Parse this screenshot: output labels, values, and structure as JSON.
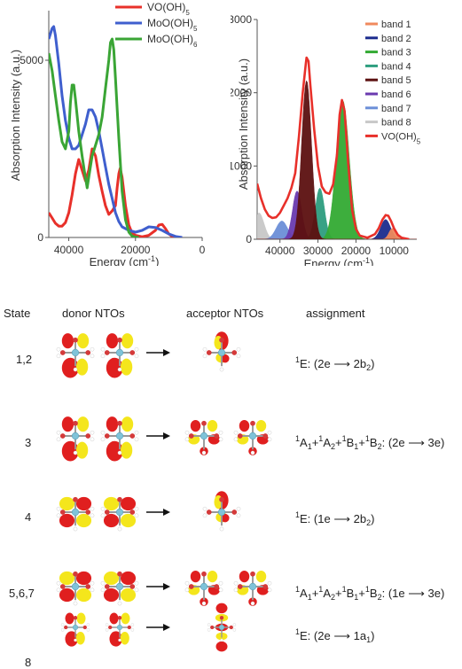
{
  "chart_data": [
    {
      "type": "line",
      "xlabel": "Energy (cm",
      "xlabel_sup": "-1",
      "xlabel_close": ")",
      "ylabel": "Absorption Intensity (a.u.)",
      "xlim": [
        46000,
        0
      ],
      "ylim": [
        0,
        6400
      ],
      "x_ticks": [
        40000,
        20000,
        0
      ],
      "y_ticks": [
        0,
        5000
      ],
      "legend_position": "top-right",
      "series": [
        {
          "name": "VO(OH)",
          "name_sub": "5",
          "color": "#e8302a",
          "points": [
            [
              46000,
              700
            ],
            [
              45000,
              550
            ],
            [
              44000,
              400
            ],
            [
              43000,
              320
            ],
            [
              42000,
              320
            ],
            [
              41000,
              420
            ],
            [
              40000,
              700
            ],
            [
              39000,
              1200
            ],
            [
              38000,
              1800
            ],
            [
              37000,
              2200
            ],
            [
              36000,
              1900
            ],
            [
              35000,
              1600
            ],
            [
              34000,
              1900
            ],
            [
              33000,
              2500
            ],
            [
              32000,
              2300
            ],
            [
              31000,
              1750
            ],
            [
              30000,
              1300
            ],
            [
              29000,
              900
            ],
            [
              28000,
              650
            ],
            [
              27000,
              750
            ],
            [
              26000,
              900
            ],
            [
              25500,
              1400
            ],
            [
              25000,
              1800
            ],
            [
              24600,
              1950
            ],
            [
              24000,
              1700
            ],
            [
              23000,
              900
            ],
            [
              22000,
              350
            ],
            [
              21000,
              120
            ],
            [
              20000,
              60
            ],
            [
              18000,
              20
            ],
            [
              16000,
              60
            ],
            [
              14000,
              200
            ],
            [
              13000,
              350
            ],
            [
              12000,
              370
            ],
            [
              11000,
              250
            ],
            [
              10000,
              100
            ],
            [
              9000,
              30
            ],
            [
              8000,
              10
            ],
            [
              6000,
              0
            ]
          ]
        },
        {
          "name": "MoO(OH)",
          "name_sub": "5",
          "color": "#3f5fce",
          "points": [
            [
              46000,
              5600
            ],
            [
              45000,
              5900
            ],
            [
              44500,
              5950
            ],
            [
              44000,
              5700
            ],
            [
              43000,
              4900
            ],
            [
              42000,
              4000
            ],
            [
              41000,
              3300
            ],
            [
              40000,
              2800
            ],
            [
              39000,
              2500
            ],
            [
              38000,
              2500
            ],
            [
              37000,
              2600
            ],
            [
              36000,
              2900
            ],
            [
              35000,
              3200
            ],
            [
              34000,
              3600
            ],
            [
              33000,
              3600
            ],
            [
              32000,
              3400
            ],
            [
              31000,
              3000
            ],
            [
              30000,
              2500
            ],
            [
              29000,
              2000
            ],
            [
              28000,
              1500
            ],
            [
              27000,
              1100
            ],
            [
              26000,
              700
            ],
            [
              25000,
              450
            ],
            [
              24000,
              300
            ],
            [
              22000,
              200
            ],
            [
              20000,
              150
            ],
            [
              18000,
              200
            ],
            [
              16000,
              300
            ],
            [
              14000,
              280
            ],
            [
              12000,
              200
            ],
            [
              10000,
              100
            ],
            [
              8000,
              30
            ],
            [
              6000,
              0
            ]
          ]
        },
        {
          "name": "MoO(OH)",
          "name_sub": "6",
          "color": "#3aa535",
          "points": [
            [
              46000,
              5200
            ],
            [
              45000,
              4700
            ],
            [
              44000,
              4000
            ],
            [
              43000,
              3300
            ],
            [
              42000,
              2700
            ],
            [
              41000,
              2500
            ],
            [
              40000,
              3000
            ],
            [
              39500,
              3800
            ],
            [
              39000,
              4300
            ],
            [
              38500,
              4300
            ],
            [
              38000,
              3900
            ],
            [
              37000,
              3000
            ],
            [
              36000,
              2300
            ],
            [
              35200,
              1800
            ],
            [
              34500,
              1400
            ],
            [
              34000,
              1700
            ],
            [
              33000,
              2300
            ],
            [
              32000,
              2600
            ],
            [
              31000,
              2900
            ],
            [
              30000,
              3400
            ],
            [
              29000,
              4200
            ],
            [
              28000,
              5000
            ],
            [
              27500,
              5500
            ],
            [
              27000,
              5600
            ],
            [
              26500,
              5300
            ],
            [
              26000,
              4500
            ],
            [
              25000,
              2800
            ],
            [
              24000,
              1300
            ],
            [
              23000,
              500
            ],
            [
              22000,
              150
            ],
            [
              21000,
              40
            ],
            [
              20000,
              10
            ],
            [
              19000,
              0
            ]
          ]
        }
      ]
    },
    {
      "type": "area",
      "xlabel": "Energy (cm",
      "xlabel_sup": "-1",
      "xlabel_close": ")",
      "ylabel": "Absorption Intensity (a.u.)",
      "xlim": [
        46000,
        4000
      ],
      "ylim": [
        0,
        3000
      ],
      "x_ticks": [
        40000,
        30000,
        20000,
        10000
      ],
      "y_ticks": [
        0,
        1000,
        2000,
        3000
      ],
      "legend_position": "top-right",
      "bands": [
        {
          "name": "band 1",
          "color": "#f08a5d",
          "center": 10400,
          "height": 150,
          "width": 900
        },
        {
          "name": "band 2",
          "color": "#1c2c8e",
          "center": 12200,
          "height": 270,
          "width": 1300
        },
        {
          "name": "band 3",
          "color": "#33aa33",
          "center": 23500,
          "height": 1900,
          "width": 1700
        },
        {
          "name": "band 4",
          "color": "#2e9e7f",
          "center": 29500,
          "height": 700,
          "width": 1200
        },
        {
          "name": "band 5",
          "color": "#5c1010",
          "center": 33000,
          "height": 2170,
          "width": 1300
        },
        {
          "name": "band 6",
          "color": "#6a3aaf",
          "center": 35500,
          "height": 660,
          "width": 1200
        },
        {
          "name": "band 7",
          "color": "#6c8fd8",
          "center": 39500,
          "height": 250,
          "width": 1500
        },
        {
          "name": "band 8",
          "color": "#c8c8c8",
          "center": 45500,
          "height": 360,
          "width": 1300
        }
      ],
      "envelope": {
        "name": "VO(OH)",
        "name_sub": "5",
        "color": "#e8302a",
        "points": [
          [
            46000,
            760
          ],
          [
            45000,
            560
          ],
          [
            44000,
            410
          ],
          [
            43000,
            320
          ],
          [
            42000,
            290
          ],
          [
            41000,
            300
          ],
          [
            40000,
            360
          ],
          [
            39000,
            460
          ],
          [
            38000,
            560
          ],
          [
            37000,
            700
          ],
          [
            36000,
            900
          ],
          [
            35000,
            1400
          ],
          [
            34000,
            2000
          ],
          [
            33200,
            2400
          ],
          [
            33000,
            2480
          ],
          [
            32500,
            2430
          ],
          [
            32000,
            2100
          ],
          [
            31000,
            1500
          ],
          [
            30000,
            1000
          ],
          [
            29000,
            720
          ],
          [
            28000,
            640
          ],
          [
            27000,
            620
          ],
          [
            26000,
            750
          ],
          [
            25000,
            1150
          ],
          [
            24300,
            1700
          ],
          [
            23700,
            1900
          ],
          [
            23000,
            1750
          ],
          [
            22000,
            1000
          ],
          [
            21000,
            400
          ],
          [
            20000,
            140
          ],
          [
            19000,
            50
          ],
          [
            17000,
            20
          ],
          [
            15000,
            70
          ],
          [
            14000,
            150
          ],
          [
            13000,
            270
          ],
          [
            12200,
            330
          ],
          [
            11500,
            320
          ],
          [
            10800,
            250
          ],
          [
            10000,
            150
          ],
          [
            9000,
            60
          ],
          [
            8000,
            20
          ],
          [
            6000,
            0
          ]
        ]
      }
    }
  ],
  "table": {
    "headers": {
      "state": "State",
      "donor": "donor NTOs",
      "acceptor": "acceptor NTOs",
      "assignment": "assignment"
    },
    "rows": [
      {
        "state": "1,2",
        "pre": "E: (2e",
        "post": "2b",
        "post_sub": "2",
        "post_close": ")",
        "acceptor_count": 1
      },
      {
        "state": "3",
        "pre": "A",
        "post": "3e)",
        "acceptor_count": 2
      },
      {
        "state": "4",
        "pre": "E: (1e",
        "post": "2b",
        "post_sub": "2",
        "post_close": ")",
        "acceptor_count": 1
      },
      {
        "state": "5,6,7",
        "pre": "A",
        "post": "3e)",
        "acceptor_count": 2
      },
      {
        "state": "8",
        "pre": "E: (2e",
        "post": "1a",
        "post_sub": "1",
        "post_close": ")",
        "acceptor_count": 1
      }
    ],
    "mixed_assignment": {
      "sup": "1",
      "a1": "A",
      "s1": "1",
      "a2": "A",
      "s2": "2",
      "b1": "B",
      "s3": "1",
      "b2": "B",
      "s4": "2",
      "tail": ": (2e",
      "tail_alt": ": (1e",
      "plus": "+"
    },
    "colors": {
      "lobe_red": "#e01f1f",
      "lobe_yellow": "#f4e61c",
      "atom_cyan": "#7fc3d9",
      "atom_white": "#ffffff"
    }
  }
}
